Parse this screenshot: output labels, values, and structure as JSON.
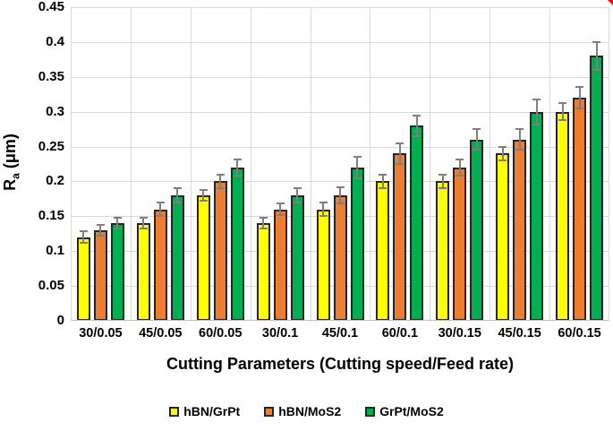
{
  "figure": {
    "background": "#FFFFFF",
    "corner_marker_color": "#FF0000"
  },
  "chart_data": {
    "type": "bar",
    "title": "",
    "xlabel": "Cutting Parameters (Cutting speed/Feed rate)",
    "ylabel": {
      "main": "R",
      "sub": "a",
      "unit": " (μm)"
    },
    "ylim": [
      0,
      0.45
    ],
    "ytick_step": 0.05,
    "ytick_labels": [
      "0.45",
      "0.4",
      "0.35",
      "0.3",
      "0.25",
      "0.2",
      "0.15",
      "0.1",
      "0.05",
      "0"
    ],
    "grid": true,
    "legend_position": "bottom",
    "categories": [
      "30/0.05",
      "45/0.05",
      "60/0.05",
      "30/0.1",
      "45/0.1",
      "60/0.1",
      "30/0.15",
      "45/0.15",
      "60/0.15"
    ],
    "series": [
      {
        "name": "hBN/GrPt",
        "color": "#FFFF00",
        "values": [
          0.12,
          0.14,
          0.18,
          0.14,
          0.16,
          0.2,
          0.2,
          0.24,
          0.3
        ],
        "errors": [
          0.008,
          0.008,
          0.008,
          0.008,
          0.01,
          0.01,
          0.01,
          0.01,
          0.012
        ]
      },
      {
        "name": "hBN/MoS2",
        "color": "#ED7D31",
        "values": [
          0.13,
          0.16,
          0.2,
          0.16,
          0.18,
          0.24,
          0.22,
          0.26,
          0.32
        ],
        "errors": [
          0.008,
          0.01,
          0.01,
          0.008,
          0.012,
          0.015,
          0.012,
          0.015,
          0.015
        ]
      },
      {
        "name": "GrPt/MoS2",
        "color": "#00B050",
        "values": [
          0.14,
          0.18,
          0.22,
          0.18,
          0.22,
          0.28,
          0.26,
          0.3,
          0.38
        ],
        "errors": [
          0.008,
          0.01,
          0.012,
          0.01,
          0.015,
          0.015,
          0.015,
          0.018,
          0.02
        ]
      }
    ],
    "style": {
      "bar_border_color": "#262626",
      "error_bar_color": "#7F7F7F",
      "gridline_color": "#D9D9D9",
      "axis_line_color": "#BFBFBF",
      "text_color": "#000000"
    }
  }
}
